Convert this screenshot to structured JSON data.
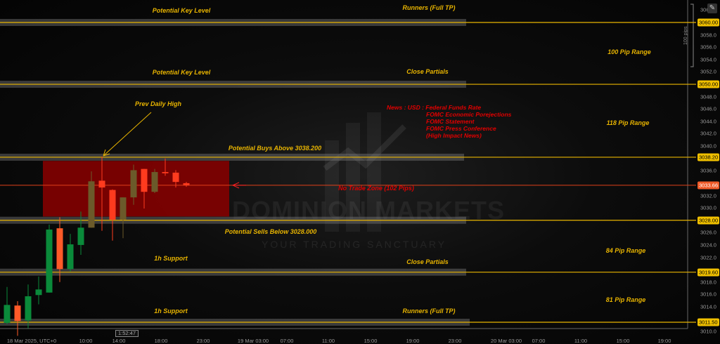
{
  "chart_data": {
    "type": "candlestick",
    "symbol_interval": "1h",
    "x_tick_labels": [
      "18 Mar 2025, UTC+0",
      "10:00",
      "14:00",
      "18:00",
      "23:00",
      "19 Mar 03:00",
      "07:00",
      "11:00",
      "15:00",
      "19:00",
      "23:00",
      "20 Mar 03:00",
      "07:00",
      "11:00",
      "15:00",
      "19:00"
    ],
    "y_tick_labels": [
      "306",
      "3058.0",
      "3056.0",
      "3054.0",
      "3052.0",
      "3048.0",
      "3046.0",
      "3044.0",
      "3042.0",
      "3040.0",
      "3036.0",
      "3032.0",
      "3030.0",
      "3026.0",
      "3024.0",
      "3022.0",
      "3018.0",
      "3016.0",
      "3014.0",
      "3010.0"
    ],
    "ylim": [
      3009,
      3062.5
    ],
    "candles": [
      {
        "t": "03:00",
        "o": 3011.4,
        "h": 3017.2,
        "l": 3011.2,
        "c": 3014.3
      },
      {
        "t": "04:00",
        "o": 3014.2,
        "h": 3014.9,
        "l": 3009.3,
        "c": 3011.7
      },
      {
        "t": "05:00",
        "o": 3011.8,
        "h": 3017.6,
        "l": 3010.5,
        "c": 3015.7
      },
      {
        "t": "06:00",
        "o": 3015.9,
        "h": 3018.9,
        "l": 3014.4,
        "c": 3016.8
      },
      {
        "t": "07:00",
        "o": 3016.3,
        "h": 3027.3,
        "l": 3016.3,
        "c": 3026.5
      },
      {
        "t": "08:00",
        "o": 3026.7,
        "h": 3028.5,
        "l": 3018.0,
        "c": 3020.1
      },
      {
        "t": "09:00",
        "o": 3020.1,
        "h": 3025.8,
        "l": 3019.7,
        "c": 3024.1
      },
      {
        "t": "10:00",
        "o": 3024.0,
        "h": 3029.4,
        "l": 3022.4,
        "c": 3026.8
      },
      {
        "t": "11:00",
        "o": 3026.8,
        "h": 3035.9,
        "l": 3026.8,
        "c": 3034.3
      },
      {
        "t": "12:00",
        "o": 3034.4,
        "h": 3038.3,
        "l": 3026.3,
        "c": 3033.3
      },
      {
        "t": "13:00",
        "o": 3032.9,
        "h": 3033.0,
        "l": 3024.7,
        "c": 3028.1
      },
      {
        "t": "14:00",
        "o": 3028.1,
        "h": 3031.7,
        "l": 3025.1,
        "c": 3031.7
      },
      {
        "t": "15:00",
        "o": 3031.7,
        "h": 3037.0,
        "l": 3030.5,
        "c": 3036.1
      },
      {
        "t": "16:00",
        "o": 3036.3,
        "h": 3036.3,
        "l": 3029.9,
        "c": 3032.6
      },
      {
        "t": "17:00",
        "o": 3032.6,
        "h": 3036.3,
        "l": 3032.4,
        "c": 3035.8
      },
      {
        "t": "18:00",
        "o": 3035.8,
        "h": 3038.0,
        "l": 3035.2,
        "c": 3035.6
      },
      {
        "t": "19:00",
        "o": 3035.7,
        "h": 3036.1,
        "l": 3033.3,
        "c": 3034.2
      },
      {
        "t": "20:00",
        "o": 3034.0,
        "h": 3034.2,
        "l": 3033.4,
        "c": 3033.66
      }
    ],
    "levels": [
      {
        "price": 3060.0,
        "label": "3060.00"
      },
      {
        "price": 3050.0,
        "label": "3050.00"
      },
      {
        "price": 3038.2,
        "label": "3038.20"
      },
      {
        "price": 3028.0,
        "label": "3028.00"
      },
      {
        "price": 3019.6,
        "label": "3019.60"
      },
      {
        "price": 3011.5,
        "label": "3011.50"
      }
    ],
    "current_price": {
      "price": 3033.66,
      "label": "3033.66"
    },
    "no_trade_zone": {
      "top": 3037.6,
      "bottom": 3028.6
    },
    "colors": {
      "up": "#0a8a3a",
      "down": "#ff5a28",
      "level": "#e8b400",
      "zone": "#8b0000",
      "current": "#e0401a"
    }
  },
  "annotations": {
    "key_level_1": "Potential Key Level",
    "key_level_2": "Potential Key Level",
    "runners_top": "Runners (Full TP)",
    "close_partials_top": "Close Partials",
    "range_100": "100 Pip Range",
    "range_118": "118 Pip Range",
    "prev_daily_high": "Prev Daily High",
    "buys_above": "Potential Buys Above 3038.200",
    "no_trade_zone": "No Trade Zone (102 Pips)",
    "sells_below": "Potential Sells Below 3028.000",
    "support_1": "1h Support",
    "support_2": "1h Support",
    "close_partials_bottom": "Close Partials",
    "runners_bottom": "Runners (Full TP)",
    "range_84": "84 Pip Range",
    "range_81": "81 Pip Range",
    "news": [
      "News : USD : Federal Funds Rate",
      "FOMC Economic Porejections",
      "FOMC Statement",
      "FOMC Press Conference",
      "(High Impact News)"
    ]
  },
  "watermark": {
    "brand": "DOMINION MARKETS",
    "tagline": "YOUR TRADING SANCTUARY"
  },
  "ruler_label": "100 pips",
  "countdown": "1:52:47",
  "icons": {
    "top_right": "edit-square-icon"
  }
}
